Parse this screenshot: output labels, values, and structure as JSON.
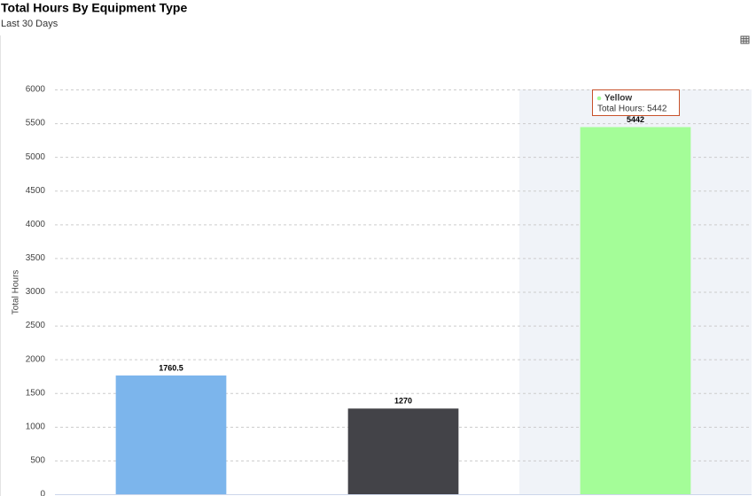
{
  "chart_data": {
    "type": "bar",
    "title": "Total Hours By Equipment Type",
    "subtitle": "Last 30 Days",
    "y_label": "Total Hours",
    "categories": [
      null,
      null,
      null
    ],
    "values": [
      1760.5,
      1270,
      5442
    ],
    "colors": [
      "#7cb5ec",
      "#434348",
      "#a4fd98"
    ],
    "ylim": [
      0,
      6000
    ],
    "yticks": [
      0,
      500,
      1000,
      1500,
      2000,
      2500,
      3000,
      3500,
      4000,
      4500,
      5000,
      5500,
      6000
    ],
    "grid": true,
    "tooltip": {
      "name": "Yellow",
      "text": "Total Hours: 5442"
    }
  }
}
